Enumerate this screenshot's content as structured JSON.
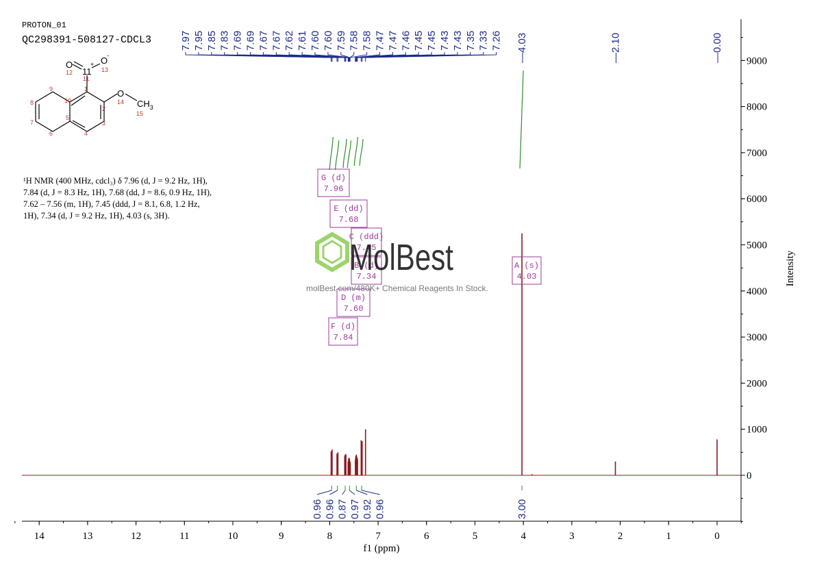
{
  "header": {
    "experiment": "PROTON_01",
    "sample": "QC298391-508127-CDCL3"
  },
  "structure": {
    "atoms": {
      "o12": "O",
      "o13": "O",
      "minus": "-",
      "n11": "11",
      "plus": "+",
      "o14": "O",
      "ch3": "CH",
      "ch3_sub": "3",
      "n1": "1",
      "n2": "2",
      "n3": "3",
      "n4": "4",
      "n5": "5",
      "n6": "6",
      "n7": "7",
      "n8": "8",
      "n9": "9",
      "n10": "10",
      "n12": "12",
      "n13": "13",
      "n14": "14",
      "n15": "15"
    }
  },
  "nmr_summary": {
    "line1": "¹H NMR (400 MHz, cdcl₃) δ 7.96 (d, J = 9.2 Hz, 1H),",
    "line2": "7.84 (d, J = 8.3 Hz, 1H), 7.68 (dd, J = 8.6, 0.9 Hz, 1H),",
    "line3": "7.62 – 7.56 (m, 1H), 7.45 (ddd, J = 8.1, 6.8, 1.2 Hz,",
    "line4": "1H), 7.34 (d, J = 9.2 Hz, 1H), 4.03 (s, 3H)."
  },
  "watermark": {
    "brand": "MolBest",
    "tagline": "molBest.com/480K+ Chemical Reagents In Stock."
  },
  "chart_data": {
    "type": "nmr_spectrum",
    "xlabel": "f1 (ppm)",
    "ylabel": "Intensity",
    "xlim": [
      14.5,
      -0.5
    ],
    "ylim": [
      -1000,
      9700
    ],
    "x_ticks": [
      14,
      13,
      12,
      11,
      10,
      9,
      8,
      7,
      6,
      5,
      4,
      3,
      2,
      1,
      0
    ],
    "y_ticks": [
      0,
      1000,
      2000,
      3000,
      4000,
      5000,
      6000,
      7000,
      8000,
      9000
    ],
    "peak_labels": [
      "7.97",
      "7.95",
      "7.85",
      "7.83",
      "7.69",
      "7.69",
      "7.67",
      "7.67",
      "7.62",
      "7.61",
      "7.60",
      "7.60",
      "7.59",
      "7.58",
      "7.58",
      "7.47",
      "7.47",
      "7.46",
      "7.45",
      "7.45",
      "7.43",
      "7.43",
      "7.35",
      "7.33",
      "7.26",
      "4.03",
      "2.10",
      "0.00"
    ],
    "peaks": [
      {
        "ppm": 7.97,
        "intensity": 520
      },
      {
        "ppm": 7.95,
        "intensity": 560
      },
      {
        "ppm": 7.85,
        "intensity": 470
      },
      {
        "ppm": 7.83,
        "intensity": 500
      },
      {
        "ppm": 7.69,
        "intensity": 420
      },
      {
        "ppm": 7.685,
        "intensity": 440
      },
      {
        "ppm": 7.67,
        "intensity": 460
      },
      {
        "ppm": 7.665,
        "intensity": 440
      },
      {
        "ppm": 7.62,
        "intensity": 300
      },
      {
        "ppm": 7.61,
        "intensity": 360
      },
      {
        "ppm": 7.6,
        "intensity": 380
      },
      {
        "ppm": 7.595,
        "intensity": 370
      },
      {
        "ppm": 7.59,
        "intensity": 340
      },
      {
        "ppm": 7.58,
        "intensity": 300
      },
      {
        "ppm": 7.575,
        "intensity": 260
      },
      {
        "ppm": 7.47,
        "intensity": 330
      },
      {
        "ppm": 7.465,
        "intensity": 380
      },
      {
        "ppm": 7.46,
        "intensity": 420
      },
      {
        "ppm": 7.45,
        "intensity": 450
      },
      {
        "ppm": 7.445,
        "intensity": 420
      },
      {
        "ppm": 7.43,
        "intensity": 380
      },
      {
        "ppm": 7.425,
        "intensity": 330
      },
      {
        "ppm": 7.35,
        "intensity": 760
      },
      {
        "ppm": 7.33,
        "intensity": 740
      },
      {
        "ppm": 7.26,
        "intensity": 1000
      },
      {
        "ppm": 4.03,
        "intensity": 5250
      },
      {
        "ppm": 3.82,
        "intensity": 25
      },
      {
        "ppm": 2.1,
        "intensity": 300
      },
      {
        "ppm": 0.0,
        "intensity": 780
      }
    ],
    "multiplets": [
      {
        "label": "G (d)",
        "shift": "7.96"
      },
      {
        "label": "E (dd)",
        "shift": "7.68"
      },
      {
        "label": "C (ddd)",
        "shift": "7.45"
      },
      {
        "label": "B (d)",
        "shift": "7.34"
      },
      {
        "label": "D (m)",
        "shift": "7.60"
      },
      {
        "label": "F (d)",
        "shift": "7.84"
      },
      {
        "label": "A (s)",
        "shift": "4.03"
      }
    ],
    "integrals": [
      {
        "ppm": 7.96,
        "value": "0.96"
      },
      {
        "ppm": 7.84,
        "value": "0.96"
      },
      {
        "ppm": 7.68,
        "value": "0.87"
      },
      {
        "ppm": 7.59,
        "value": "0.97"
      },
      {
        "ppm": 7.45,
        "value": "0.92"
      },
      {
        "ppm": 7.34,
        "value": "0.96"
      },
      {
        "ppm": 4.03,
        "value": "3.00"
      }
    ],
    "colors": {
      "spectrum": "#8b1a1a",
      "peak_label": "#1c2a8c",
      "integral": "#2e8b2e",
      "multiplet_box": "#9b3a9b"
    }
  }
}
